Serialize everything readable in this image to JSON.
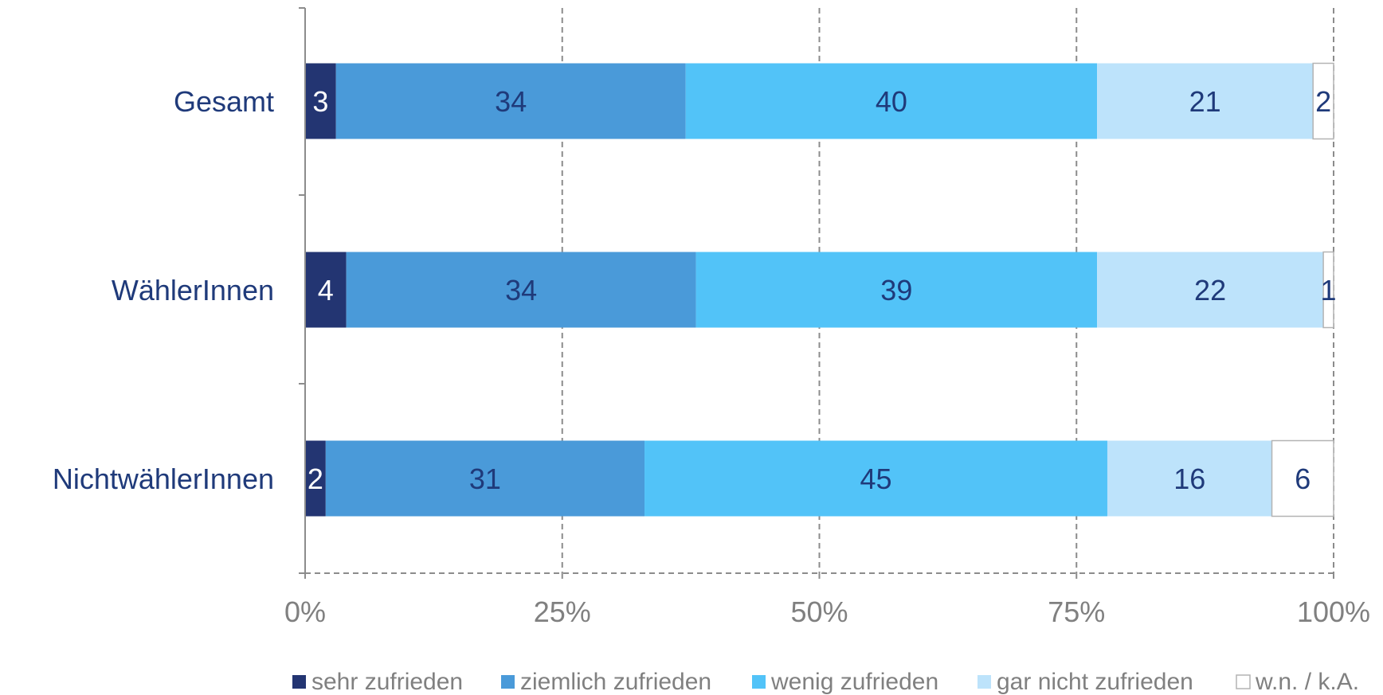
{
  "chart_data": {
    "type": "bar",
    "orientation": "horizontal",
    "stacked": "percent",
    "categories": [
      "Gesamt",
      "WählerInnen",
      "NichtwählerInnen"
    ],
    "series": [
      {
        "name": "sehr zufrieden",
        "values": [
          3,
          4,
          2
        ],
        "color": "#233572"
      },
      {
        "name": "ziemlich zufrieden",
        "values": [
          34,
          34,
          31
        ],
        "color": "#4a9ad9"
      },
      {
        "name": "wenig zufrieden",
        "values": [
          40,
          39,
          45
        ],
        "color": "#52c3f8"
      },
      {
        "name": "gar nicht zufrieden",
        "values": [
          21,
          22,
          16
        ],
        "color": "#bde3fb"
      },
      {
        "name": "w.n. / k.A.",
        "values": [
          2,
          1,
          6
        ],
        "color": "#ffffff"
      }
    ],
    "x_ticks": [
      "0%",
      "25%",
      "50%",
      "75%",
      "100%"
    ],
    "xlim": [
      0,
      100
    ],
    "grid": "vertical dashed",
    "legend": "bottom"
  }
}
